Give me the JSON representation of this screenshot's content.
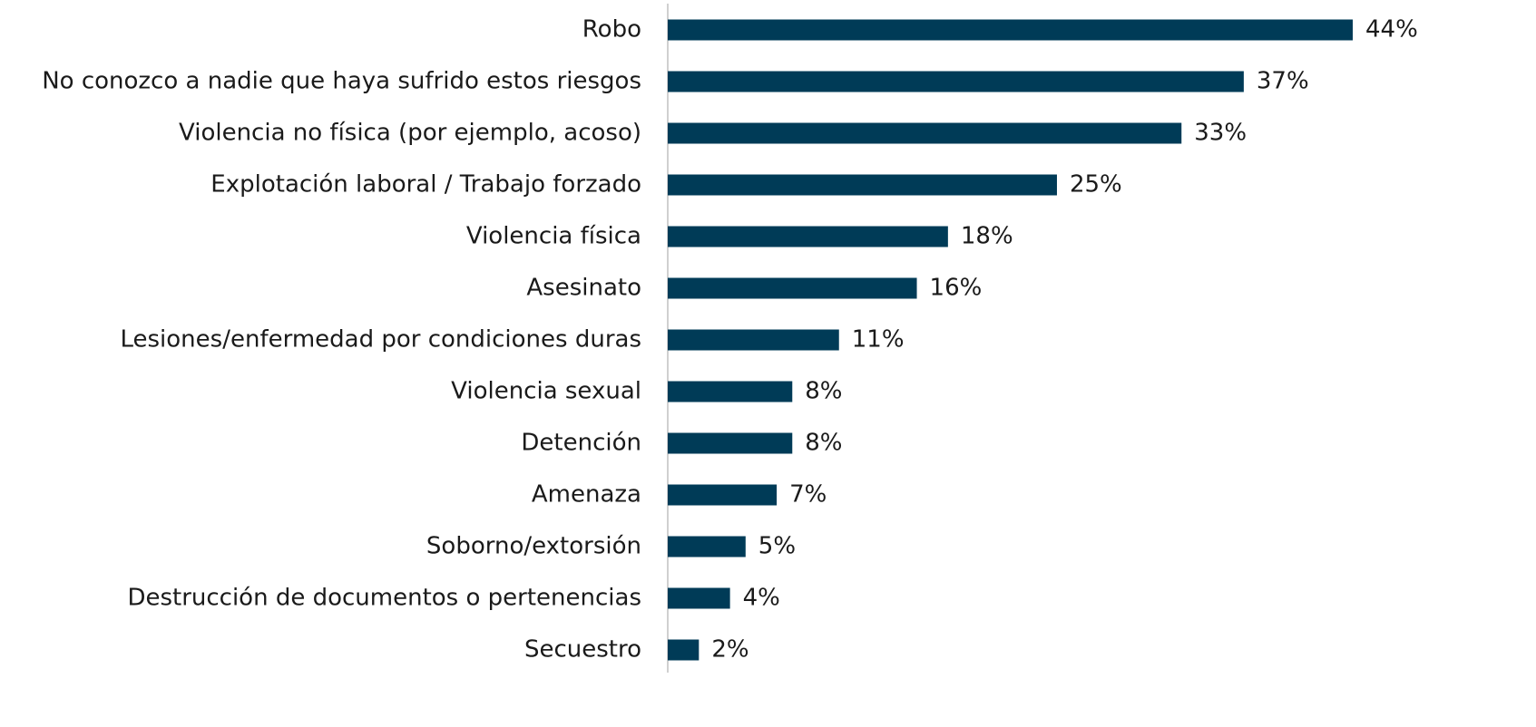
{
  "chart_data": {
    "type": "bar",
    "orientation": "horizontal",
    "categories": [
      "Robo",
      "No conozco a nadie que haya sufrido estos riesgos",
      "Violencia no física (por ejemplo, acoso)",
      "Explotación laboral / Trabajo forzado",
      "Violencia física",
      "Asesinato",
      "Lesiones/enfermedad por condiciones duras",
      "Violencia sexual",
      "Detención",
      "Amenaza",
      "Soborno/extorsión",
      "Destrucción de documentos o pertenencias",
      "Secuestro"
    ],
    "values": [
      44,
      37,
      33,
      25,
      18,
      16,
      11,
      8,
      8,
      7,
      5,
      4,
      2
    ],
    "value_labels": [
      "44%",
      "37%",
      "33%",
      "25%",
      "18%",
      "16%",
      "11%",
      "8%",
      "8%",
      "7%",
      "5%",
      "4%",
      "2%"
    ],
    "color": "#003b57"
  }
}
